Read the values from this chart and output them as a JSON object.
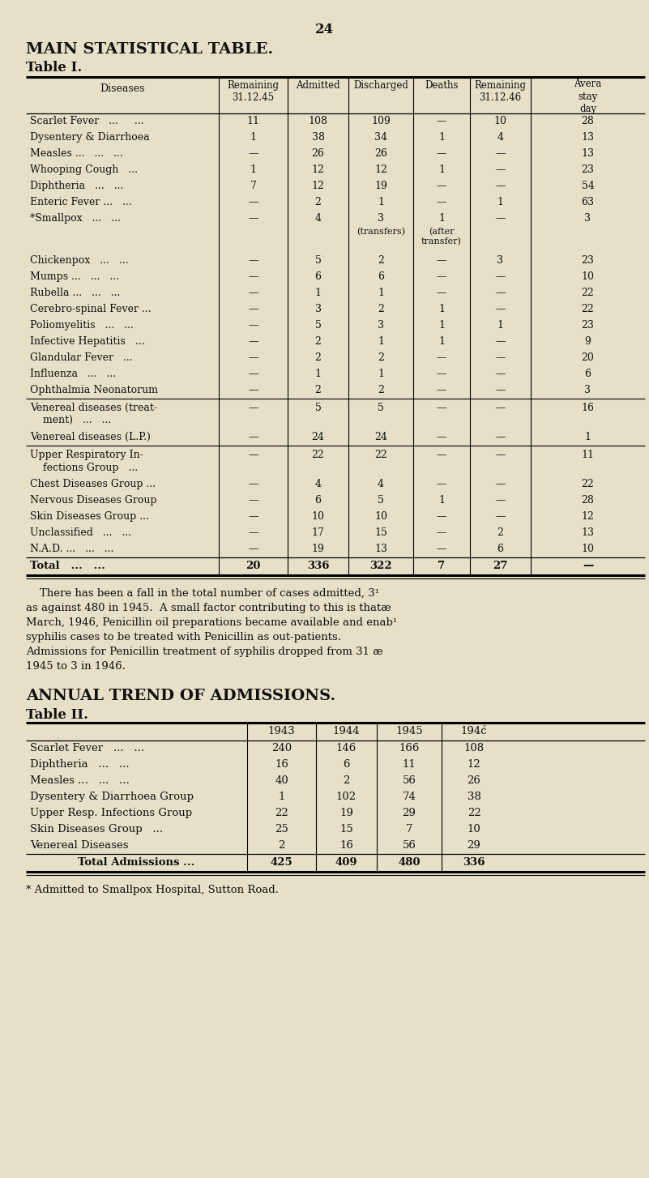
{
  "page_number": "24",
  "main_title": "MAIN STATISTICAL TABLE.",
  "table1_title": "Table I.",
  "bg_color": "#e8dfc8",
  "table1_rows": [
    [
      "Scarlet Fever   ...     ...",
      "11",
      "108",
      "109",
      "—",
      "10",
      "28"
    ],
    [
      "Dysentery & Diarrhoea",
      "1",
      "38",
      "34",
      "1",
      "4",
      "13"
    ],
    [
      "Measles ...   ...   ...",
      "—",
      "26",
      "26",
      "—",
      "—",
      "13"
    ],
    [
      "Whooping Cough   ...",
      "1",
      "12",
      "12",
      "1",
      "—",
      "23"
    ],
    [
      "Diphtheria   ...   ...",
      "7",
      "12",
      "19",
      "—",
      "—",
      "54"
    ],
    [
      "Enteric Fever ...   ...",
      "—",
      "2",
      "1",
      "—",
      "1",
      "63"
    ],
    [
      "*Smallpox   ...   ...",
      "—",
      "4",
      "3",
      "1",
      "—",
      "3"
    ],
    [
      "Chickenpox   ...   ...",
      "—",
      "5",
      "2",
      "—",
      "3",
      "23"
    ],
    [
      "Mumps ...   ...   ...",
      "—",
      "6",
      "6",
      "—",
      "—",
      "10"
    ],
    [
      "Rubella ...   ...   ...",
      "—",
      "1",
      "1",
      "—",
      "—",
      "22"
    ],
    [
      "Cerebro-spinal Fever ...",
      "—",
      "3",
      "2",
      "1",
      "—",
      "22"
    ],
    [
      "Poliomyelitis   ...   ...",
      "—",
      "5",
      "3",
      "1",
      "1",
      "23"
    ],
    [
      "Infective Hepatitis   ...",
      "—",
      "2",
      "1",
      "1",
      "—",
      "9"
    ],
    [
      "Glandular Fever   ...",
      "—",
      "2",
      "2",
      "—",
      "—",
      "20"
    ],
    [
      "Influenza   ...   ...",
      "—",
      "1",
      "1",
      "—",
      "—",
      "6"
    ],
    [
      "Ophthalmia Neonatorum",
      "—",
      "2",
      "2",
      "—",
      "—",
      "3"
    ],
    [
      "Venereal diseases (treat-\n    ment)   ...   ...",
      "—",
      "5",
      "5",
      "—",
      "—",
      "16"
    ],
    [
      "Venereal diseases (L.P.)",
      "—",
      "24",
      "24",
      "—",
      "—",
      "1"
    ],
    [
      "Upper Respiratory In-\n    fections Group   ...",
      "—",
      "22",
      "22",
      "—",
      "—",
      "11"
    ],
    [
      "Chest Diseases Group ...",
      "—",
      "4",
      "4",
      "—",
      "—",
      "22"
    ],
    [
      "Nervous Diseases Group",
      "—",
      "6",
      "5",
      "1",
      "—",
      "28"
    ],
    [
      "Skin Diseases Group ...",
      "—",
      "10",
      "10",
      "—",
      "—",
      "12"
    ],
    [
      "Unclassified   ...   ...",
      "—",
      "17",
      "15",
      "—",
      "2",
      "13"
    ],
    [
      "N.A.D. ...   ...   ...",
      "—",
      "19",
      "13",
      "—",
      "6",
      "10"
    ]
  ],
  "smallpox_discharged_note": "(transfers)",
  "smallpox_deaths_note": "(after\ntransfer)",
  "table1_total": [
    "Total   ...   ...",
    "20",
    "336",
    "322",
    "7",
    "27",
    "—"
  ],
  "footnote_lines": [
    "    There has been a fall in the total number of cases admitted, 3¹",
    "as against 480 in 1945.  A small factor contributing to this is thatæ",
    "March, 1946, Penicillin oil preparations became available and enab¹",
    "syphilis cases to be treated with Penicillin as out-patients.",
    "Admissions for Penicillin treatment of syphilis dropped from 31 æ",
    "1945 to 3 in 1946."
  ],
  "annual_title": "ANNUAL TREND OF ADMISSIONS.",
  "table2_title": "Table II.",
  "table2_headers": [
    "",
    "1943",
    "1944",
    "1945",
    "194ć"
  ],
  "table2_rows": [
    [
      "Scarlet Fever   ...   ...",
      "240",
      "146",
      "166",
      "108"
    ],
    [
      "Diphtheria   ...   ...",
      "16",
      "6",
      "11",
      "12"
    ],
    [
      "Measles ...   ...   ...",
      "40",
      "2",
      "56",
      "26"
    ],
    [
      "Dysentery & Diarrhoea Group",
      "1",
      "102",
      "74",
      "38"
    ],
    [
      "Upper Resp. Infections Group",
      "22",
      "19",
      "29",
      "22"
    ],
    [
      "Skin Diseases Group   ...",
      "25",
      "15",
      "7",
      "10"
    ],
    [
      "Venereal Diseases",
      "2",
      "16",
      "56",
      "29"
    ]
  ],
  "table2_total": [
    "Total Admissions ...",
    "425",
    "409",
    "480",
    "336"
  ],
  "bottom_note": "* Admitted to Smallpox Hospital, Sutton Road."
}
